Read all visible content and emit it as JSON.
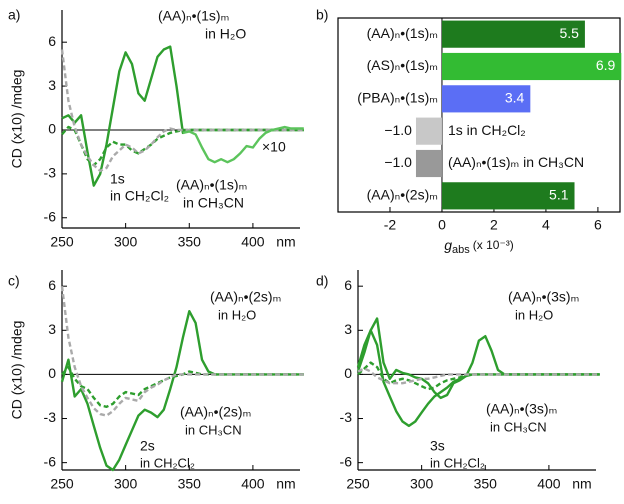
{
  "chart_data": [
    {
      "type": "line",
      "panel_label": "a)",
      "ylabel": "CD (x10) /mdeg",
      "x_unit": "nm",
      "xlim": [
        250,
        437
      ],
      "ylim": [
        -6.7,
        8.2
      ],
      "xticks": [
        250,
        300,
        350,
        400
      ],
      "yticks": [
        -6,
        -3,
        0,
        3,
        6
      ],
      "x": [
        250,
        255,
        260,
        265,
        270,
        275,
        280,
        285,
        290,
        295,
        300,
        305,
        310,
        315,
        320,
        325,
        330,
        335,
        340,
        345,
        350,
        355,
        360,
        365,
        370,
        375,
        380,
        385,
        390,
        395,
        400,
        405,
        410,
        415,
        420,
        425,
        430,
        435,
        440
      ],
      "series": [
        {
          "color": "#2e9e2e",
          "dash": false,
          "values": [
            0.8,
            1.0,
            0.5,
            1.0,
            -1.5,
            -3.8,
            -3.0,
            -1.0,
            1.5,
            4.0,
            5.3,
            4.5,
            2.5,
            2.0,
            3.5,
            5.0,
            5.5,
            5.7,
            3.0,
            -0.2,
            0,
            0,
            0,
            0,
            0,
            0,
            0,
            0,
            0,
            0,
            0,
            0,
            0,
            0,
            0,
            0,
            0,
            0,
            0
          ]
        },
        {
          "color": "#2e9e2e",
          "dash": true,
          "values": [
            -0.3,
            0.2,
            0,
            -1.0,
            -2.0,
            -2.4,
            -2.0,
            -1.2,
            -0.8,
            -1.0,
            -1.0,
            -1.4,
            -1.6,
            -1.3,
            -1.0,
            -0.6,
            -0.4,
            -0.2,
            -0.1,
            0,
            0,
            0,
            0,
            0,
            0,
            0,
            0,
            0,
            0,
            0,
            0,
            0,
            0,
            0,
            0,
            0,
            0,
            0,
            0
          ]
        },
        {
          "color": "#aaaaaa",
          "dash": true,
          "values": [
            5.5,
            2.0,
            0.2,
            -1.0,
            -1.8,
            -2.4,
            -2.8,
            -2.6,
            -1.8,
            -1.4,
            -1.0,
            -1.2,
            -1.6,
            -1.4,
            -1.0,
            -0.5,
            -0.1,
            0.1,
            0,
            0,
            0,
            0,
            0,
            0,
            0,
            0,
            0,
            0,
            0,
            0,
            0,
            0,
            0,
            0,
            0,
            0,
            0,
            0,
            0
          ]
        },
        {
          "color": "#5cc45c",
          "dash": false,
          "values": [
            null,
            null,
            null,
            null,
            null,
            null,
            null,
            null,
            null,
            null,
            null,
            null,
            null,
            null,
            null,
            null,
            null,
            null,
            null,
            -0.2,
            -0.1,
            -0.3,
            -1.2,
            -2.0,
            -2.2,
            -2.0,
            -2.2,
            -2.0,
            -1.6,
            -1.1,
            -1.2,
            -0.6,
            -0.2,
            0,
            0.1,
            0.2,
            0.1,
            0.1,
            0.1
          ]
        }
      ],
      "annotations": [
        "(AA)ₙ•(1s)ₘ",
        "in H₂O",
        "×10",
        "(AA)ₙ•(1s)ₘ",
        "in CH₃CN",
        "1s",
        "in CH₂Cl₂"
      ]
    },
    {
      "type": "hbar",
      "panel_label": "b)",
      "xlabel": {
        "main": "g",
        "sub": "abs",
        "rest": "(x 10⁻³)"
      },
      "xlim": [
        -4,
        6.85
      ],
      "xticks": [
        -2,
        0,
        2,
        4,
        6
      ],
      "categories": [
        "(AA)ₙ•(1s)ₘ",
        "(AS)ₙ•(1s)ₘ",
        "(PBA)ₙ•(1s)ₘ",
        "1s in CH₂Cl₂",
        "(AA)ₙ•(1s)ₘ in CH₃CN",
        "(AA)ₙ•(2s)ₘ"
      ],
      "values": [
        5.5,
        6.9,
        3.4,
        -1.0,
        -1.0,
        5.1
      ],
      "value_labels": [
        "5.5",
        "6.9",
        "3.4",
        "−1.0",
        "−1.0",
        "5.1"
      ],
      "colors": [
        "#1e7b1e",
        "#33bb33",
        "#5b6ef5",
        "#c8c8c8",
        "#999999",
        "#1e7b1e"
      ]
    },
    {
      "type": "line",
      "panel_label": "c)",
      "ylabel": "CD (x10) /mdeg",
      "x_unit": "nm",
      "xlim": [
        250,
        437
      ],
      "ylim": [
        -6.5,
        7.1
      ],
      "xticks": [
        250,
        300,
        350,
        400
      ],
      "yticks": [
        -6,
        -3,
        0,
        3,
        6
      ],
      "x": [
        250,
        255,
        260,
        265,
        270,
        275,
        280,
        285,
        290,
        295,
        300,
        305,
        310,
        315,
        320,
        325,
        330,
        335,
        340,
        345,
        350,
        355,
        360,
        365,
        370,
        375,
        380,
        385,
        390,
        395,
        400,
        405,
        410,
        415,
        420,
        425,
        430,
        435,
        440
      ],
      "series": [
        {
          "color": "#2e9e2e",
          "dash": false,
          "values": [
            -0.5,
            1.0,
            -1.5,
            -1.0,
            -2.0,
            -3.5,
            -5.0,
            -6.2,
            -6.5,
            -5.8,
            -4.8,
            -3.8,
            -2.8,
            -2.4,
            -2.6,
            -2.9,
            -2.4,
            -1.0,
            0.5,
            2.5,
            4.3,
            3.5,
            1.0,
            0.2,
            0,
            0,
            0,
            0,
            0,
            0,
            0,
            0,
            0,
            0,
            0,
            0,
            0,
            0,
            0
          ]
        },
        {
          "color": "#2e9e2e",
          "dash": true,
          "values": [
            0,
            0.5,
            -0.3,
            -0.8,
            -1.0,
            -1.6,
            -2.1,
            -2.2,
            -2.0,
            -1.5,
            -1.2,
            -1.3,
            -1.4,
            -1.0,
            -0.8,
            -0.6,
            -0.4,
            -0.2,
            -0.1,
            0,
            0.2,
            0.1,
            0,
            0,
            0,
            0,
            0,
            0,
            0,
            0,
            0,
            0,
            0,
            0,
            0,
            0,
            0,
            0,
            0
          ]
        },
        {
          "color": "#aaaaaa",
          "dash": true,
          "values": [
            6.0,
            2.5,
            0.5,
            -0.8,
            -1.6,
            -2.3,
            -2.7,
            -2.8,
            -2.5,
            -2.0,
            -1.6,
            -1.7,
            -1.8,
            -1.2,
            -0.9,
            -0.7,
            -0.4,
            -0.2,
            0,
            0,
            0,
            0,
            0,
            0,
            0,
            0,
            0,
            0,
            0,
            0,
            0,
            0,
            0,
            0,
            0,
            0,
            0,
            0,
            0
          ]
        }
      ],
      "annotations": [
        "(AA)ₙ•(2s)ₘ",
        "in H₂O",
        "(AA)ₙ•(2s)ₘ",
        "in CH₃CN",
        "2s",
        "in CH₂Cl₂"
      ]
    },
    {
      "type": "line",
      "panel_label": "d)",
      "x_unit": "nm",
      "xlim": [
        250,
        437
      ],
      "ylim": [
        -6.5,
        7.1
      ],
      "xticks": [
        250,
        300,
        350,
        400
      ],
      "yticks": [
        -6,
        -3,
        0,
        3,
        6
      ],
      "x": [
        250,
        255,
        260,
        265,
        270,
        275,
        280,
        285,
        290,
        295,
        300,
        305,
        310,
        315,
        320,
        325,
        330,
        335,
        340,
        345,
        350,
        355,
        360,
        365,
        370,
        375,
        380,
        385,
        390,
        395,
        400,
        405,
        410,
        415,
        420,
        425,
        430,
        435,
        440
      ],
      "series": [
        {
          "color": "#2e9e2e",
          "dash": false,
          "values": [
            0.2,
            1.5,
            3.0,
            3.8,
            0.8,
            -0.3,
            0.3,
            0.1,
            0,
            -0.2,
            -0.3,
            -0.6,
            -1.2,
            -1.6,
            -1.4,
            -0.6,
            -0.4,
            -0.1,
            0.8,
            2.3,
            2.6,
            1.6,
            0.3,
            0,
            0,
            0,
            0,
            0,
            0,
            0,
            0,
            0,
            0,
            0,
            0,
            0,
            0,
            0,
            0
          ]
        },
        {
          "color": "#2e9e2e",
          "dash": false,
          "values": [
            0.5,
            2.0,
            3.0,
            2.0,
            -0.5,
            -1.5,
            -2.5,
            -3.2,
            -3.5,
            -3.2,
            -2.6,
            -2.0,
            -1.5,
            -1.2,
            -0.9,
            -0.5,
            -0.3,
            -0.1,
            0,
            0,
            0,
            0,
            0,
            0,
            0,
            0,
            0,
            0,
            0,
            0,
            0,
            0,
            0,
            0,
            0,
            0,
            0,
            0,
            0
          ]
        },
        {
          "color": "#2e9e2e",
          "dash": true,
          "values": [
            0,
            0.4,
            0.8,
            0.5,
            -0.3,
            -0.6,
            -0.4,
            -0.3,
            -0.4,
            -0.6,
            -0.8,
            -1.0,
            -0.9,
            -0.6,
            -0.4,
            -0.3,
            -0.2,
            0,
            0,
            0,
            0,
            0,
            0,
            0,
            0,
            0,
            0,
            0,
            0,
            0,
            0,
            0,
            0,
            0,
            0,
            0,
            0,
            0,
            0
          ]
        },
        {
          "color": "#aaaaaa",
          "dash": true,
          "values": [
            0.2,
            0.4,
            0.2,
            -0.2,
            -0.4,
            -0.6,
            -0.6,
            -0.6,
            -0.5,
            -0.4,
            -0.3,
            -0.3,
            -0.2,
            -0.1,
            0,
            0,
            0,
            0,
            0,
            0,
            0,
            0,
            0,
            0,
            0,
            0,
            0,
            0,
            0,
            0,
            0,
            0,
            0,
            0,
            0,
            0,
            0,
            0,
            0
          ]
        }
      ],
      "annotations": [
        "(AA)ₙ•(3s)ₘ",
        "in H₂O",
        "(AA)ₙ•(3s)ₘ",
        "in CH₃CN",
        "3s",
        "in CH₂Cl₂"
      ]
    }
  ]
}
